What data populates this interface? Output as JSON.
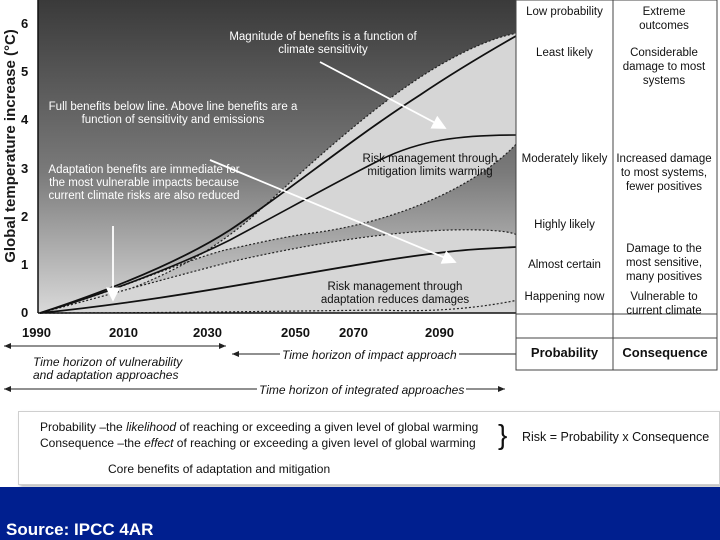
{
  "diagram": {
    "y_axis_label": "Global temperature increase (°C)",
    "y_ticks": [
      "6",
      "5",
      "4",
      "3",
      "2",
      "1",
      "0"
    ],
    "x_ticks": [
      "1990",
      "2010",
      "2030",
      "2050",
      "2070",
      "2090"
    ],
    "annotations": {
      "magnitude": "Magnitude of benefits is a function of climate sensitivity",
      "full_benefits": "Full benefits below line. Above line benefits are a function of sensitivity and emissions",
      "adaptation_benefits": "Adaptation benefits are immediate for the most vulnerable impacts because current climate risks are also reduced",
      "risk_mitigation": "Risk management through mitigation limits warming",
      "risk_adaptation": "Risk management through adaptation reduces damages"
    },
    "horizons": {
      "vulnerability": "Time horizon of vulnerability and adaptation approaches",
      "impact": "Time horizon of impact approach",
      "integrated": "Time horizon of integrated approaches"
    }
  },
  "table": {
    "probability_rows": [
      "Low probability",
      "Least likely",
      "Moderately likely",
      "Highly likely",
      "Almost certain",
      "Happening now"
    ],
    "consequence_rows": [
      "Extreme outcomes",
      "Considerable damage to most systems",
      "Increased damage to most systems, fewer positives",
      "Damage to the most sensitive, many positives",
      "Vulnerable to current climate"
    ],
    "footer_probability": "Probability",
    "footer_consequence": "Consequence"
  },
  "legend": {
    "line1_prefix": "Probability –the ",
    "line1_em": "likelihood",
    "line1_suffix": " of reaching or exceeding a given level of global warming",
    "line2_prefix": "Consequence –the ",
    "line2_em": "effect",
    "line2_suffix": " of reaching or exceeding a given level of global warming",
    "brace": "}",
    "risk_formula": "Risk = Probability x Consequence",
    "core_benefits": "Core benefits of adaptation and mitigation"
  },
  "footer": {
    "source": "Source: IPCC 4AR"
  },
  "colors": {
    "footer_bg": "#001f8f",
    "envelope_fill": "#d6d6d6",
    "plot_dark": "#3c3c3c"
  }
}
